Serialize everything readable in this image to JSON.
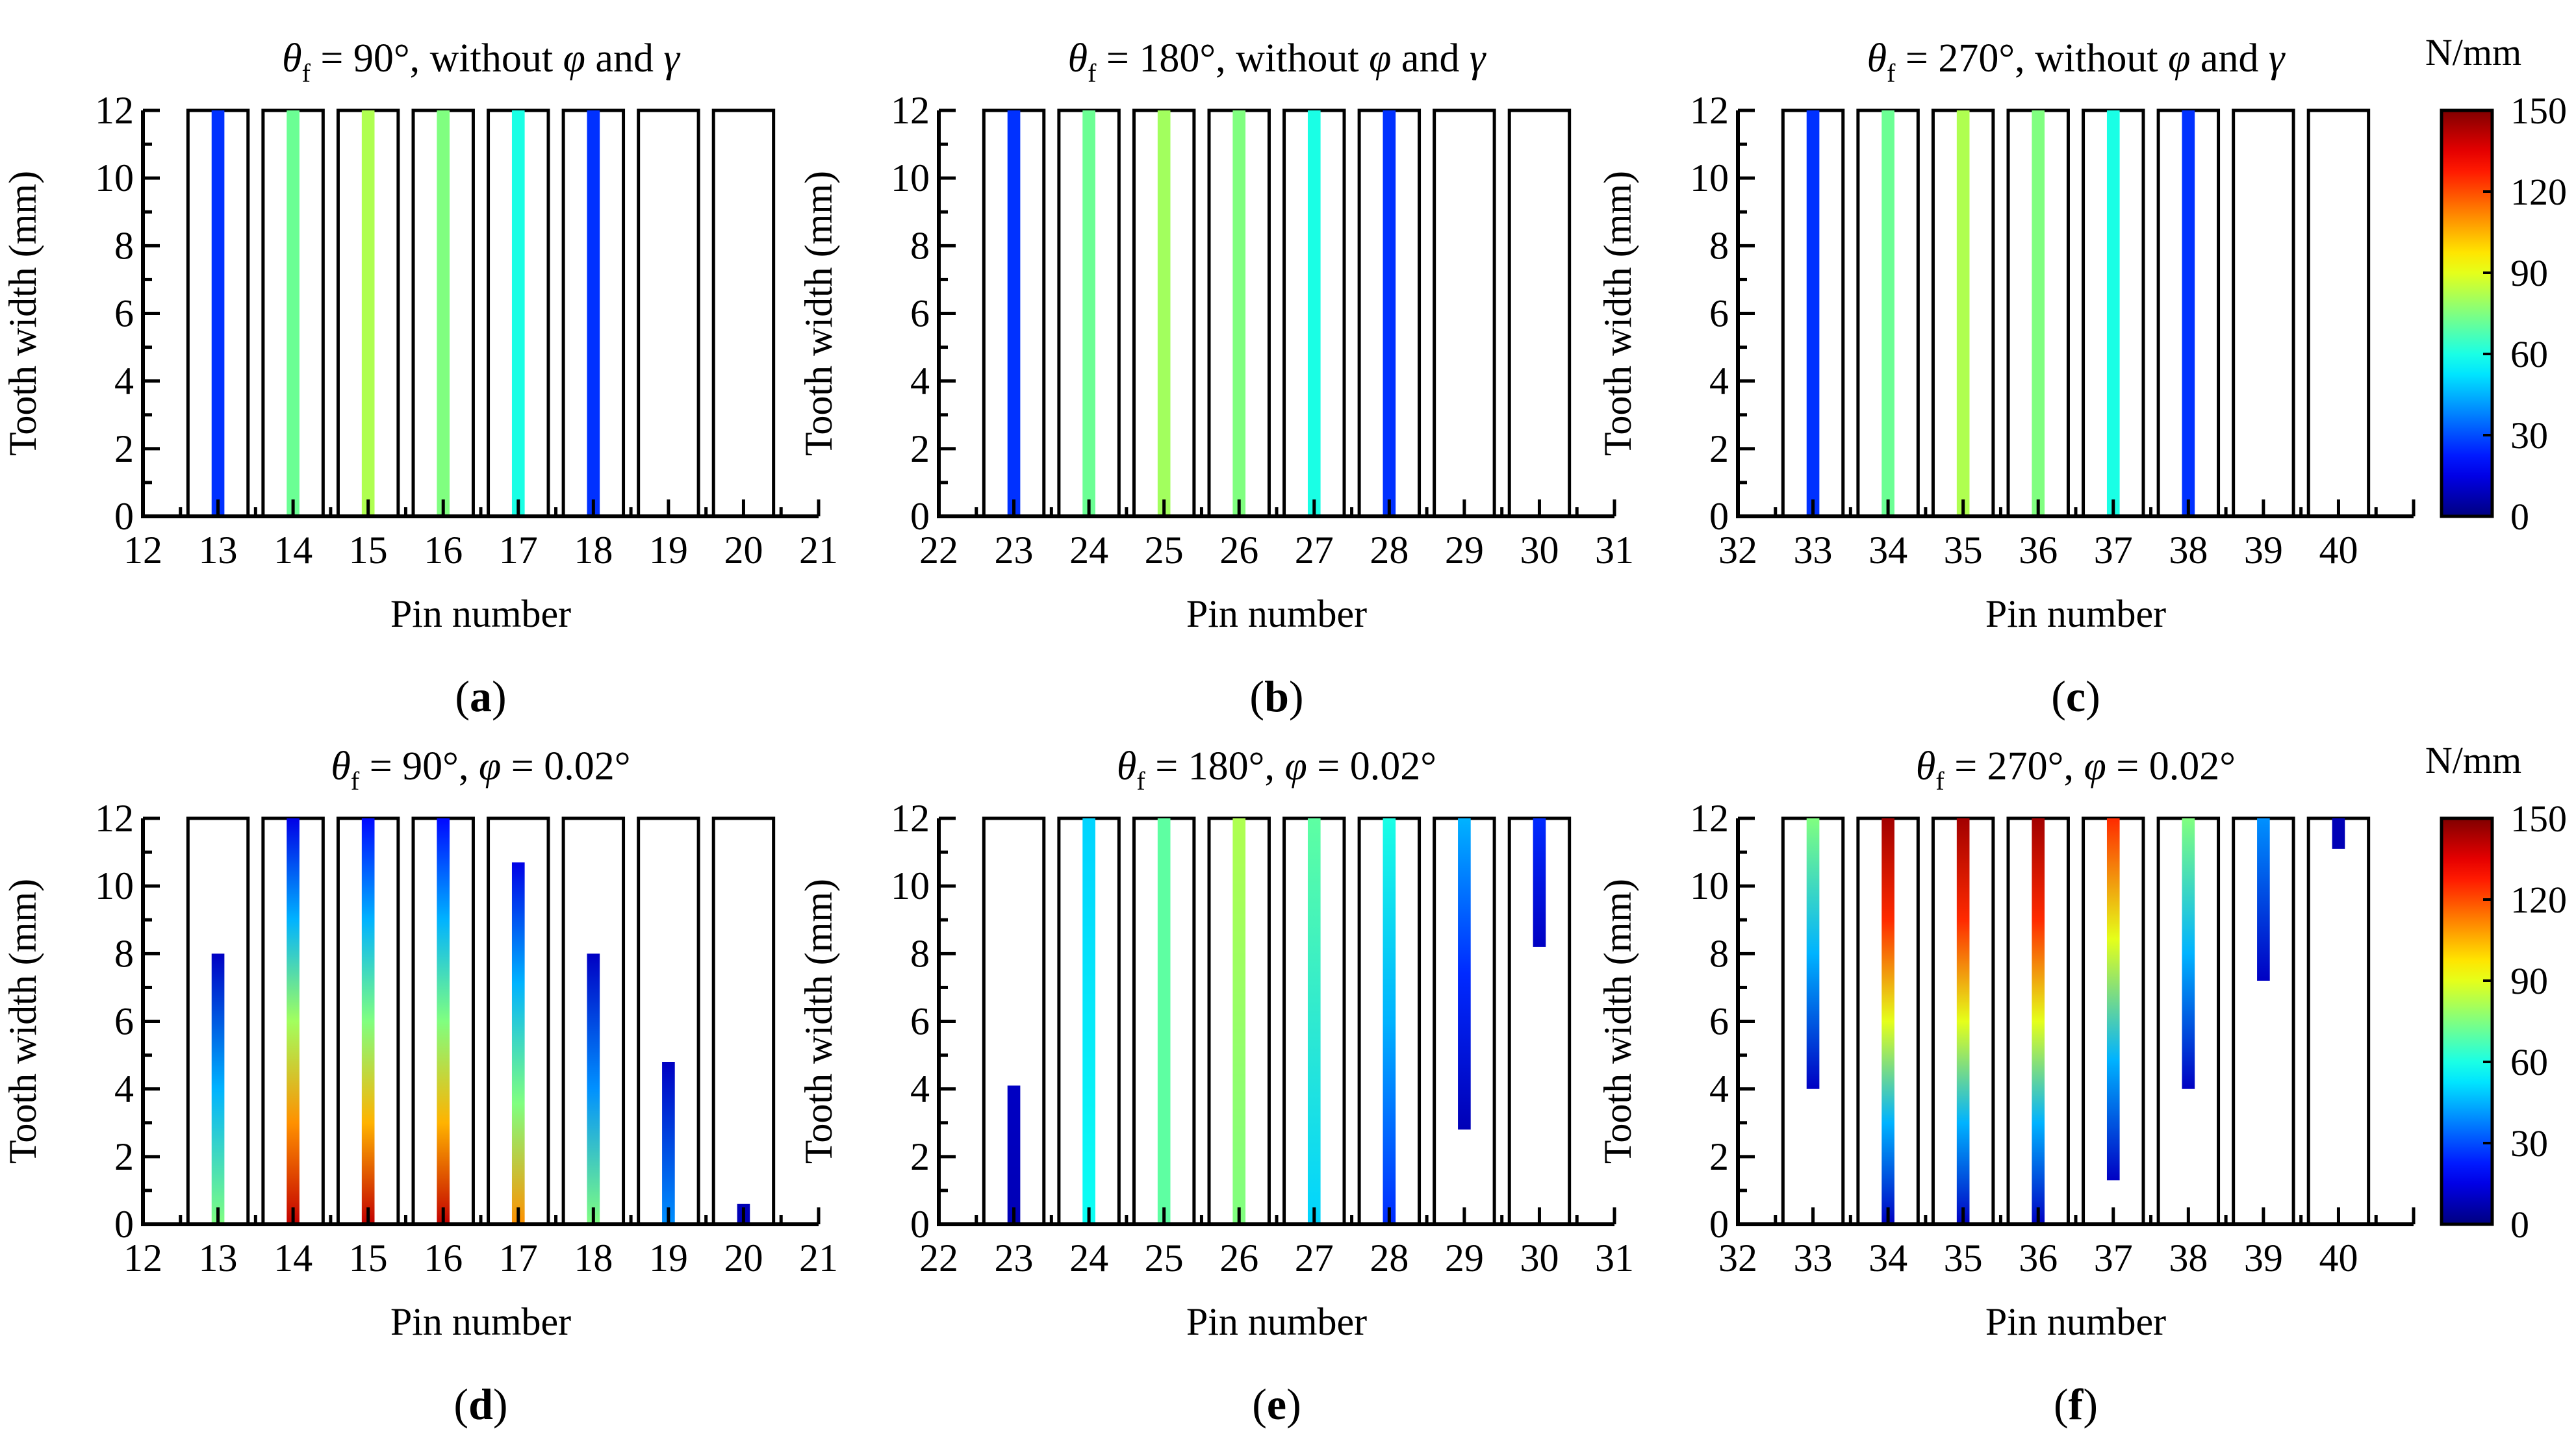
{
  "chart_data": [
    {
      "type": "heatmap",
      "panel_label": "a",
      "title_parts": {
        "symbol": "θ",
        "subscript": "f",
        "rest": " = 90°, without ",
        "phi": "φ",
        "and": " and ",
        "gamma": "γ"
      },
      "xlabel": "Pin number",
      "ylabel": "Tooth width (mm)",
      "xlim": [
        12,
        21
      ],
      "ylim": [
        0,
        12
      ],
      "xticks": [
        12,
        13,
        14,
        15,
        16,
        17,
        18,
        19,
        20,
        21
      ],
      "yticks": [
        0,
        2,
        4,
        6,
        8,
        10,
        12
      ],
      "pins": [
        13,
        14,
        15,
        16,
        17,
        18,
        19,
        20
      ],
      "strips": [
        {
          "pin": 13,
          "start": 0,
          "end": 12,
          "values": [
            26
          ]
        },
        {
          "pin": 14,
          "start": 0,
          "end": 12,
          "values": [
            72
          ]
        },
        {
          "pin": 15,
          "start": 0,
          "end": 12,
          "values": [
            82
          ]
        },
        {
          "pin": 16,
          "start": 0,
          "end": 12,
          "values": [
            75
          ]
        },
        {
          "pin": 17,
          "start": 0,
          "end": 12,
          "values": [
            60
          ]
        },
        {
          "pin": 18,
          "start": 0,
          "end": 12,
          "values": [
            26
          ]
        }
      ]
    },
    {
      "type": "heatmap",
      "panel_label": "b",
      "title_parts": {
        "symbol": "θ",
        "subscript": "f",
        "rest": " = 180°, without ",
        "phi": "φ",
        "and": " and ",
        "gamma": "γ"
      },
      "xlabel": "Pin number",
      "ylabel": "Tooth width (mm)",
      "xlim": [
        22,
        31
      ],
      "ylim": [
        0,
        12
      ],
      "xticks": [
        22,
        23,
        24,
        25,
        26,
        27,
        28,
        29,
        30,
        31
      ],
      "yticks": [
        0,
        2,
        4,
        6,
        8,
        10,
        12
      ],
      "pins": [
        23,
        24,
        25,
        26,
        27,
        28,
        29,
        30
      ],
      "strips": [
        {
          "pin": 23,
          "start": 0,
          "end": 12,
          "values": [
            26
          ]
        },
        {
          "pin": 24,
          "start": 0,
          "end": 12,
          "values": [
            72
          ]
        },
        {
          "pin": 25,
          "start": 0,
          "end": 12,
          "values": [
            80
          ]
        },
        {
          "pin": 26,
          "start": 0,
          "end": 12,
          "values": [
            75
          ]
        },
        {
          "pin": 27,
          "start": 0,
          "end": 12,
          "values": [
            60
          ]
        },
        {
          "pin": 28,
          "start": 0,
          "end": 12,
          "values": [
            26
          ]
        }
      ]
    },
    {
      "type": "heatmap",
      "panel_label": "c",
      "title_parts": {
        "symbol": "θ",
        "subscript": "f",
        "rest": " = 270°, without ",
        "phi": "φ",
        "and": " and ",
        "gamma": "γ"
      },
      "xlabel": "Pin number",
      "ylabel": "Tooth width (mm)",
      "xlim": [
        32,
        41
      ],
      "ylim": [
        0,
        12
      ],
      "xticks": [
        32,
        33,
        34,
        35,
        36,
        37,
        38,
        39,
        40
      ],
      "yticks": [
        0,
        2,
        4,
        6,
        8,
        10,
        12
      ],
      "pins": [
        33,
        34,
        35,
        36,
        37,
        38,
        39,
        40
      ],
      "strips": [
        {
          "pin": 33,
          "start": 0,
          "end": 12,
          "values": [
            26
          ]
        },
        {
          "pin": 34,
          "start": 0,
          "end": 12,
          "values": [
            72
          ]
        },
        {
          "pin": 35,
          "start": 0,
          "end": 12,
          "values": [
            82
          ]
        },
        {
          "pin": 36,
          "start": 0,
          "end": 12,
          "values": [
            75
          ]
        },
        {
          "pin": 37,
          "start": 0,
          "end": 12,
          "values": [
            60
          ]
        },
        {
          "pin": 38,
          "start": 0,
          "end": 12,
          "values": [
            26
          ]
        }
      ]
    },
    {
      "type": "heatmap",
      "panel_label": "d",
      "title_parts": {
        "symbol": "θ",
        "subscript": "f",
        "rest": " = 90°, ",
        "phi": "φ",
        "tail": " = 0.02°"
      },
      "xlabel": "Pin number",
      "ylabel": "Tooth width (mm)",
      "xlim": [
        12,
        21
      ],
      "ylim": [
        0,
        12
      ],
      "xticks": [
        12,
        13,
        14,
        15,
        16,
        17,
        18,
        19,
        20,
        21
      ],
      "yticks": [
        0,
        2,
        4,
        6,
        8,
        10,
        12
      ],
      "pins": [
        13,
        14,
        15,
        16,
        17,
        18,
        19,
        20
      ],
      "strips": [
        {
          "pin": 13,
          "start": 0,
          "end": 8,
          "values": [
            75,
            45,
            10
          ]
        },
        {
          "pin": 14,
          "start": 0,
          "end": 12,
          "values": [
            140,
            110,
            80,
            45,
            15
          ]
        },
        {
          "pin": 15,
          "start": 0,
          "end": 12,
          "values": [
            140,
            105,
            75,
            45,
            20
          ]
        },
        {
          "pin": 16,
          "start": 0,
          "end": 12,
          "values": [
            140,
            105,
            75,
            45,
            20
          ]
        },
        {
          "pin": 17,
          "start": 0,
          "end": 10.7,
          "values": [
            110,
            75,
            45,
            15
          ]
        },
        {
          "pin": 18,
          "start": 0,
          "end": 8,
          "values": [
            75,
            40,
            10
          ]
        },
        {
          "pin": 19,
          "start": 0,
          "end": 4.8,
          "values": [
            40,
            10
          ]
        },
        {
          "pin": 20,
          "start": 0,
          "end": 0.6,
          "values": [
            8
          ]
        }
      ]
    },
    {
      "type": "heatmap",
      "panel_label": "e",
      "title_parts": {
        "symbol": "θ",
        "subscript": "f",
        "rest": " = 180°, ",
        "phi": "φ",
        "tail": " = 0.02°"
      },
      "xlabel": "Pin number",
      "ylabel": "Tooth width (mm)",
      "xlim": [
        22,
        31
      ],
      "ylim": [
        0,
        12
      ],
      "xticks": [
        22,
        23,
        24,
        25,
        26,
        27,
        28,
        29,
        30,
        31
      ],
      "yticks": [
        0,
        2,
        4,
        6,
        8,
        10,
        12
      ],
      "pins": [
        23,
        24,
        25,
        26,
        27,
        28,
        29,
        30
      ],
      "strips": [
        {
          "pin": 23,
          "start": 0,
          "end": 4.1,
          "values": [
            8,
            10
          ]
        },
        {
          "pin": 24,
          "start": 0,
          "end": 12,
          "values": [
            58,
            50
          ]
        },
        {
          "pin": 25,
          "start": 0,
          "end": 12,
          "values": [
            70,
            70
          ]
        },
        {
          "pin": 26,
          "start": 0,
          "end": 12,
          "values": [
            75,
            82
          ]
        },
        {
          "pin": 27,
          "start": 0,
          "end": 12,
          "values": [
            50,
            70
          ]
        },
        {
          "pin": 28,
          "start": 0,
          "end": 12,
          "values": [
            25,
            45,
            60
          ]
        },
        {
          "pin": 29,
          "start": 2.8,
          "end": 12,
          "values": [
            8,
            25,
            45
          ]
        },
        {
          "pin": 30,
          "start": 8.2,
          "end": 12,
          "values": [
            10,
            25
          ]
        }
      ]
    },
    {
      "type": "heatmap",
      "panel_label": "f",
      "title_parts": {
        "symbol": "θ",
        "subscript": "f",
        "rest": " = 270°, ",
        "phi": "φ",
        "tail": " = 0.02°"
      },
      "xlabel": "Pin number",
      "ylabel": "Tooth width (mm)",
      "xlim": [
        32,
        41
      ],
      "ylim": [
        0,
        12
      ],
      "xticks": [
        32,
        33,
        34,
        35,
        36,
        37,
        38,
        39,
        40
      ],
      "yticks": [
        0,
        2,
        4,
        6,
        8,
        10,
        12
      ],
      "pins": [
        33,
        34,
        35,
        36,
        37,
        38,
        39,
        40
      ],
      "strips": [
        {
          "pin": 33,
          "start": 4,
          "end": 12,
          "values": [
            10,
            45,
            75
          ]
        },
        {
          "pin": 34,
          "start": 0,
          "end": 12,
          "values": [
            10,
            45,
            90,
            125,
            145
          ]
        },
        {
          "pin": 35,
          "start": 0,
          "end": 12,
          "values": [
            10,
            45,
            90,
            125,
            145
          ]
        },
        {
          "pin": 36,
          "start": 0,
          "end": 12,
          "values": [
            10,
            45,
            90,
            125,
            145
          ]
        },
        {
          "pin": 37,
          "start": 1.3,
          "end": 12,
          "values": [
            10,
            45,
            90,
            125
          ]
        },
        {
          "pin": 38,
          "start": 4,
          "end": 12,
          "values": [
            10,
            45,
            75
          ]
        },
        {
          "pin": 39,
          "start": 7.2,
          "end": 12,
          "values": [
            10,
            40
          ]
        },
        {
          "pin": 40,
          "start": 11.1,
          "end": 12,
          "values": [
            8
          ]
        }
      ]
    }
  ],
  "colorbar": {
    "unit": "N/mm",
    "range": [
      0,
      150
    ],
    "ticks": [
      0,
      30,
      60,
      90,
      120,
      150
    ]
  }
}
